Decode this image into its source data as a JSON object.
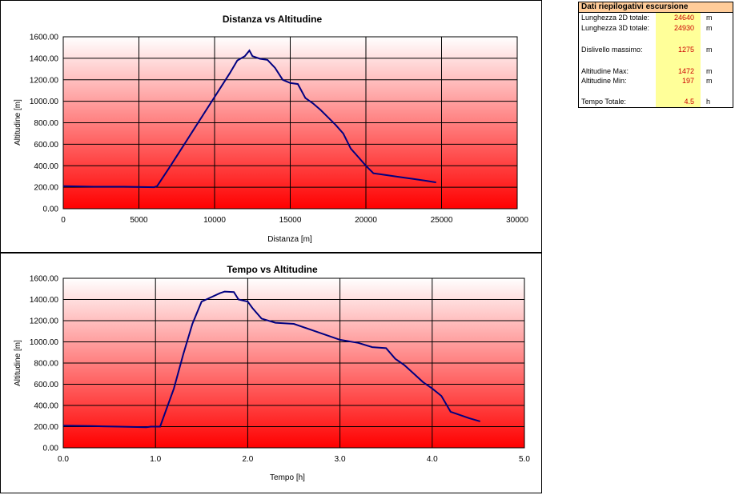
{
  "chart_data": [
    {
      "type": "line",
      "title": "Distanza vs Altitudine",
      "xlabel": "Distanza [m]",
      "ylabel": "Altitudine [m]",
      "xlim": [
        0,
        30000
      ],
      "ylim": [
        0,
        1600
      ],
      "xticks": [
        "0",
        "5000",
        "10000",
        "15000",
        "20000",
        "25000",
        "30000"
      ],
      "yticks": [
        "0.00",
        "200.00",
        "400.00",
        "600.00",
        "800.00",
        "1000.00",
        "1200.00",
        "1400.00",
        "1600.00"
      ],
      "grid": true,
      "line_color": "#000080",
      "x": [
        0,
        2000,
        4000,
        6000,
        6200,
        7000,
        8000,
        9000,
        10000,
        11000,
        11500,
        12000,
        12300,
        12500,
        13000,
        13500,
        14000,
        14500,
        15000,
        15500,
        16000,
        16500,
        17000,
        17500,
        18000,
        18500,
        19000,
        19500,
        20000,
        20500,
        21000,
        22000,
        23000,
        24000,
        24640
      ],
      "y": [
        210,
        205,
        205,
        200,
        210,
        380,
        600,
        820,
        1040,
        1260,
        1380,
        1420,
        1472,
        1420,
        1395,
        1385,
        1310,
        1200,
        1170,
        1160,
        1030,
        980,
        920,
        850,
        780,
        700,
        560,
        480,
        400,
        330,
        320,
        300,
        280,
        260,
        245
      ]
    },
    {
      "type": "line",
      "title": "Tempo vs Altitudine",
      "xlabel": "Tempo [h]",
      "ylabel": "Altitudine [m]",
      "xlim": [
        0,
        5
      ],
      "ylim": [
        0,
        1600
      ],
      "xticks": [
        "0.0",
        "1.0",
        "2.0",
        "3.0",
        "4.0",
        "5.0"
      ],
      "yticks": [
        "0.00",
        "200.00",
        "400.00",
        "600.00",
        "800.00",
        "1000.00",
        "1200.00",
        "1400.00",
        "1600.00"
      ],
      "grid": true,
      "line_color": "#000080",
      "x": [
        0,
        0.3,
        0.6,
        0.9,
        0.95,
        1.05,
        1.1,
        1.2,
        1.3,
        1.4,
        1.5,
        1.55,
        1.7,
        1.75,
        1.85,
        1.9,
        2.0,
        2.05,
        2.15,
        2.3,
        2.5,
        2.7,
        2.9,
        3.0,
        3.2,
        3.35,
        3.5,
        3.6,
        3.7,
        3.8,
        3.9,
        4.0,
        4.1,
        4.2,
        4.3,
        4.4,
        4.52
      ],
      "y": [
        210,
        205,
        200,
        195,
        200,
        200,
        320,
        560,
        880,
        1170,
        1380,
        1400,
        1460,
        1475,
        1470,
        1400,
        1380,
        1320,
        1220,
        1180,
        1170,
        1110,
        1050,
        1020,
        990,
        950,
        940,
        840,
        780,
        700,
        620,
        560,
        490,
        340,
        310,
        280,
        250
      ]
    }
  ],
  "summary": {
    "header": "Dati riepilogativi escursione",
    "rows": [
      {
        "label": "Lunghezza 2D totale:",
        "value": "24640",
        "unit": "m"
      },
      {
        "label": "Lunghezza 3D totale:",
        "value": "24930",
        "unit": "m"
      },
      {
        "label": "Dislivello massimo:",
        "value": "1275",
        "unit": "m"
      },
      {
        "label": "Altitudine Max:",
        "value": "1472",
        "unit": "m"
      },
      {
        "label": "Altitudine Min:",
        "value": "197",
        "unit": "m"
      },
      {
        "label": "Tempo Totale:",
        "value": "4.5",
        "unit": "h"
      }
    ]
  }
}
